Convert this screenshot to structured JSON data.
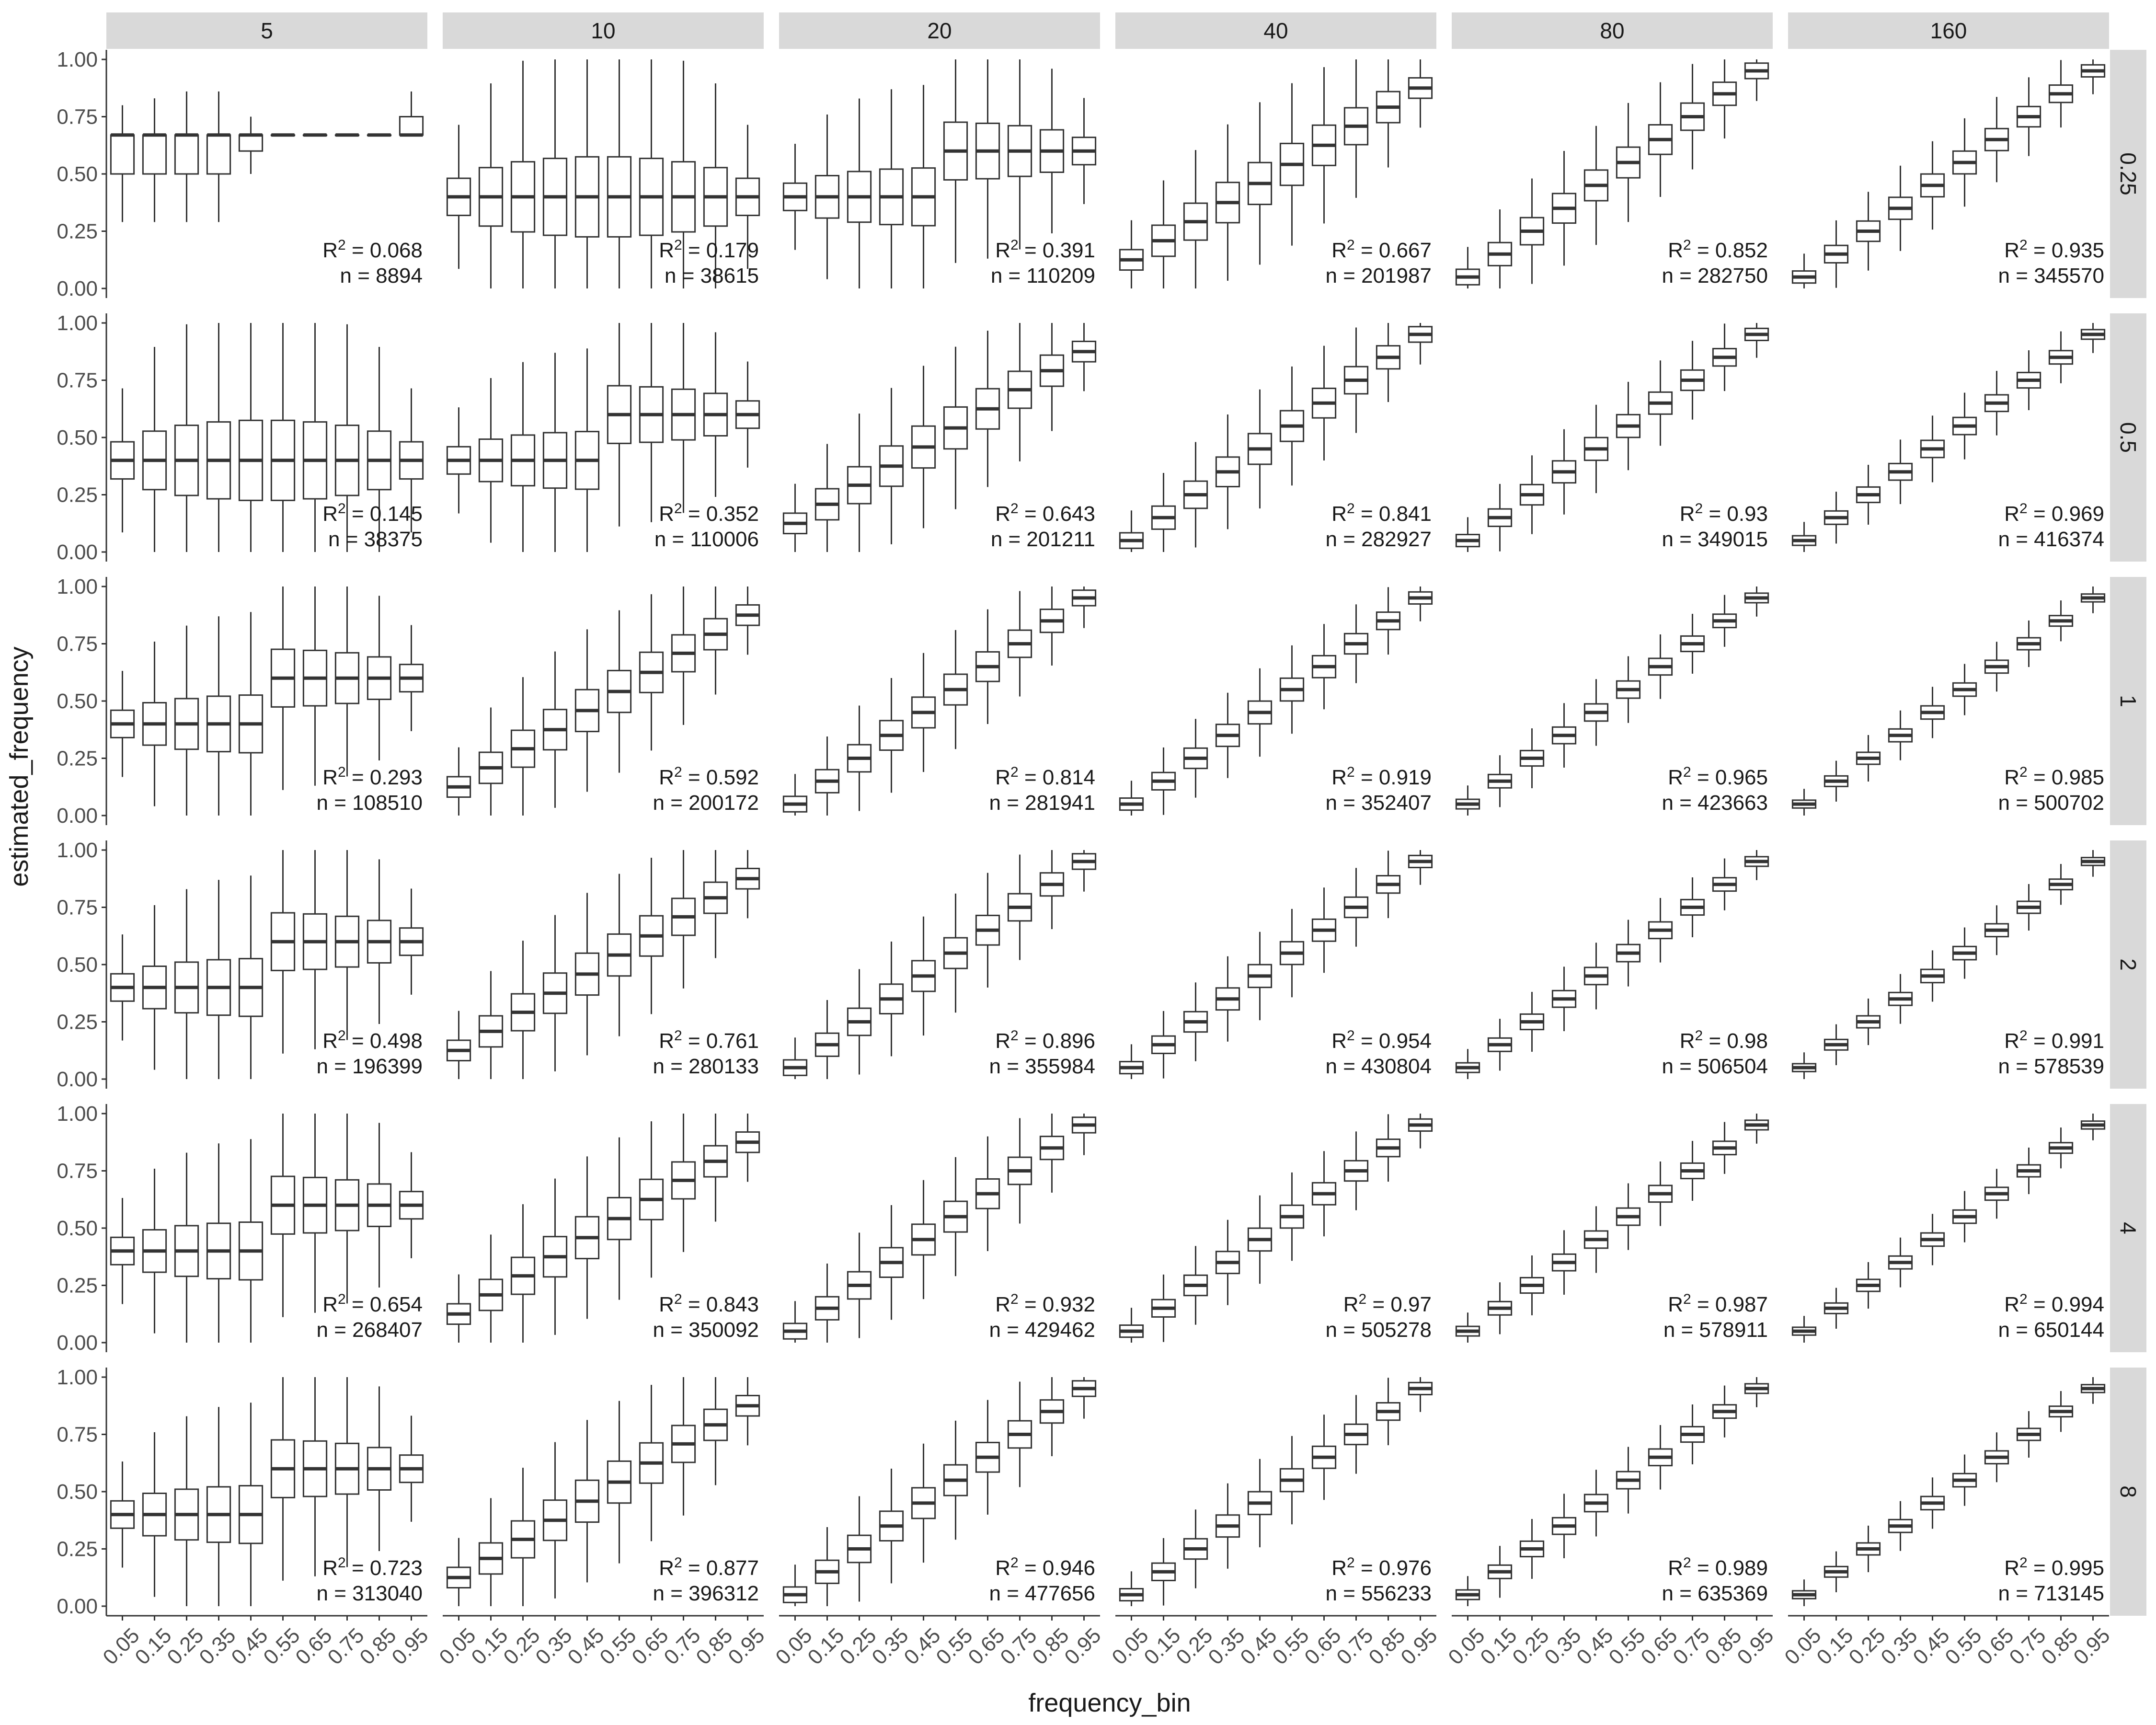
{
  "chart_data": {
    "type": "boxplot",
    "xlabel": "frequency_bin",
    "ylabel": "estimated_frequency",
    "ylim": [
      0,
      1
    ],
    "y_ticks": [
      "0.00",
      "0.25",
      "0.50",
      "0.75",
      "1.00"
    ],
    "x_categories": [
      "0.05",
      "0.15",
      "0.25",
      "0.35",
      "0.45",
      "0.55",
      "0.65",
      "0.75",
      "0.85",
      "0.95"
    ],
    "column_facets": [
      "5",
      "10",
      "20",
      "40",
      "80",
      "160"
    ],
    "row_facets": [
      "0.25",
      "0.5",
      "1",
      "2",
      "4",
      "8"
    ],
    "panels": [
      [
        {
          "r2": "0.068",
          "n": "8894"
        },
        {
          "r2": "0.179",
          "n": "38615"
        },
        {
          "r2": "0.391",
          "n": "110209"
        },
        {
          "r2": "0.667",
          "n": "201987"
        },
        {
          "r2": "0.852",
          "n": "282750"
        },
        {
          "r2": "0.935",
          "n": "345570"
        }
      ],
      [
        {
          "r2": "0.145",
          "n": "38375"
        },
        {
          "r2": "0.352",
          "n": "110006"
        },
        {
          "r2": "0.643",
          "n": "201211"
        },
        {
          "r2": "0.841",
          "n": "282927"
        },
        {
          "r2": "0.93",
          "n": "349015"
        },
        {
          "r2": "0.969",
          "n": "416374"
        }
      ],
      [
        {
          "r2": "0.293",
          "n": "108510"
        },
        {
          "r2": "0.592",
          "n": "200172"
        },
        {
          "r2": "0.814",
          "n": "281941"
        },
        {
          "r2": "0.919",
          "n": "352407"
        },
        {
          "r2": "0.965",
          "n": "423663"
        },
        {
          "r2": "0.985",
          "n": "500702"
        }
      ],
      [
        {
          "r2": "0.498",
          "n": "196399"
        },
        {
          "r2": "0.761",
          "n": "280133"
        },
        {
          "r2": "0.896",
          "n": "355984"
        },
        {
          "r2": "0.954",
          "n": "430804"
        },
        {
          "r2": "0.98",
          "n": "506504"
        },
        {
          "r2": "0.991",
          "n": "578539"
        }
      ],
      [
        {
          "r2": "0.654",
          "n": "268407"
        },
        {
          "r2": "0.843",
          "n": "350092"
        },
        {
          "r2": "0.932",
          "n": "429462"
        },
        {
          "r2": "0.97",
          "n": "505278"
        },
        {
          "r2": "0.987",
          "n": "578911"
        },
        {
          "r2": "0.994",
          "n": "650144"
        }
      ],
      [
        {
          "r2": "0.723",
          "n": "313040"
        },
        {
          "r2": "0.877",
          "n": "396312"
        },
        {
          "r2": "0.946",
          "n": "477656"
        },
        {
          "r2": "0.976",
          "n": "556233"
        },
        {
          "r2": "0.989",
          "n": "635369"
        },
        {
          "r2": "0.995",
          "n": "713145"
        }
      ]
    ],
    "first_panel_boxes": [
      {
        "x": "0.05",
        "min": 0.29,
        "q1": 0.5,
        "median": 0.67,
        "q3": 0.67,
        "max": 0.8
      },
      {
        "x": "0.15",
        "min": 0.29,
        "q1": 0.5,
        "median": 0.67,
        "q3": 0.67,
        "max": 0.83
      },
      {
        "x": "0.25",
        "min": 0.29,
        "q1": 0.5,
        "median": 0.67,
        "q3": 0.67,
        "max": 0.86
      },
      {
        "x": "0.35",
        "min": 0.29,
        "q1": 0.5,
        "median": 0.67,
        "q3": 0.67,
        "max": 0.86
      },
      {
        "x": "0.45",
        "min": 0.5,
        "q1": 0.6,
        "median": 0.67,
        "q3": 0.67,
        "max": 0.75
      },
      {
        "x": "0.55",
        "min": 0.67,
        "q1": 0.67,
        "median": 0.67,
        "q3": 0.67,
        "max": 0.67
      },
      {
        "x": "0.65",
        "min": 0.67,
        "q1": 0.67,
        "median": 0.67,
        "q3": 0.67,
        "max": 0.67
      },
      {
        "x": "0.75",
        "min": 0.67,
        "q1": 0.67,
        "median": 0.67,
        "q3": 0.67,
        "max": 0.67
      },
      {
        "x": "0.85",
        "min": 0.67,
        "q1": 0.67,
        "median": 0.67,
        "q3": 0.67,
        "max": 0.67
      },
      {
        "x": "0.95",
        "min": 0.67,
        "q1": 0.67,
        "median": 0.67,
        "q3": 0.75,
        "max": 0.86
      }
    ],
    "r2_label": "R",
    "r2_exponent": "2",
    "n_label": "n",
    "equals": "="
  }
}
